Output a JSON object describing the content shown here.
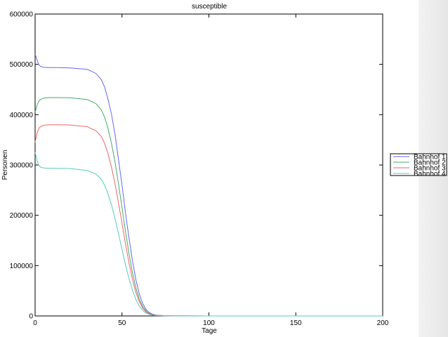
{
  "chart_data": {
    "type": "line",
    "title": "susceptible",
    "xlabel": "Tage",
    "ylabel": "Personen",
    "xlim": [
      0,
      200
    ],
    "ylim": [
      0,
      600000
    ],
    "xticks": [
      0,
      50,
      100,
      150,
      200
    ],
    "yticks": [
      0,
      100000,
      200000,
      300000,
      400000,
      500000,
      600000
    ],
    "grid": false,
    "legend_position": "right",
    "series": [
      {
        "name": "Bahnhof 1",
        "color": "#6666ee",
        "x": [
          0,
          1,
          2,
          3,
          5,
          8,
          12,
          20,
          30,
          35,
          38,
          40,
          42,
          44,
          46,
          48,
          50,
          52,
          54,
          56,
          58,
          60,
          62,
          64,
          66,
          68,
          70,
          75,
          80,
          100,
          150,
          200
        ],
        "y": [
          520000,
          510000,
          500000,
          496000,
          494000,
          493500,
          493500,
          493000,
          490000,
          482000,
          470000,
          455000,
          430000,
          400000,
          360000,
          310000,
          260000,
          205000,
          155000,
          110000,
          72000,
          43000,
          24000,
          12000,
          6000,
          3000,
          1500,
          500,
          200,
          50,
          0,
          0
        ]
      },
      {
        "name": "Bahnhof 2",
        "color": "#44aa66",
        "x": [
          0,
          1,
          2,
          3,
          5,
          8,
          12,
          20,
          30,
          35,
          38,
          40,
          42,
          44,
          46,
          48,
          50,
          52,
          54,
          56,
          58,
          60,
          62,
          64,
          66,
          68,
          70,
          75,
          80,
          100,
          150,
          200
        ],
        "y": [
          405000,
          418000,
          426000,
          430000,
          433000,
          434000,
          434000,
          433500,
          430000,
          422000,
          410000,
          395000,
          372000,
          342000,
          305000,
          262000,
          215000,
          168000,
          124000,
          86000,
          56000,
          33000,
          18000,
          9000,
          4500,
          2200,
          1100,
          400,
          150,
          40,
          0,
          0
        ]
      },
      {
        "name": "Bahnhof 3",
        "color": "#ee6666",
        "x": [
          0,
          1,
          2,
          3,
          5,
          8,
          12,
          20,
          30,
          35,
          38,
          40,
          42,
          44,
          46,
          48,
          50,
          52,
          54,
          56,
          58,
          60,
          62,
          64,
          66,
          68,
          70,
          75,
          80,
          100,
          150,
          200
        ],
        "y": [
          345000,
          362000,
          372000,
          376000,
          379000,
          380000,
          380000,
          379500,
          376000,
          368000,
          357000,
          343000,
          322000,
          295000,
          262000,
          224000,
          184000,
          143000,
          105000,
          73000,
          47000,
          28000,
          15000,
          7500,
          3800,
          1900,
          950,
          350,
          120,
          30,
          0,
          0
        ]
      },
      {
        "name": "Bahnhof 4",
        "color": "#55ccbb",
        "x": [
          0,
          1,
          2,
          3,
          5,
          8,
          12,
          20,
          30,
          35,
          38,
          40,
          42,
          44,
          46,
          48,
          50,
          52,
          54,
          56,
          58,
          60,
          62,
          64,
          66,
          68,
          70,
          75,
          80,
          100,
          150,
          200
        ],
        "y": [
          325000,
          310000,
          300000,
          296000,
          294000,
          293500,
          293500,
          293000,
          289000,
          282000,
          272000,
          260000,
          242000,
          220000,
          193000,
          163000,
          132000,
          101000,
          74000,
          51000,
          33000,
          19500,
          10500,
          5300,
          2700,
          1300,
          700,
          250,
          90,
          20,
          0,
          0
        ]
      }
    ]
  }
}
